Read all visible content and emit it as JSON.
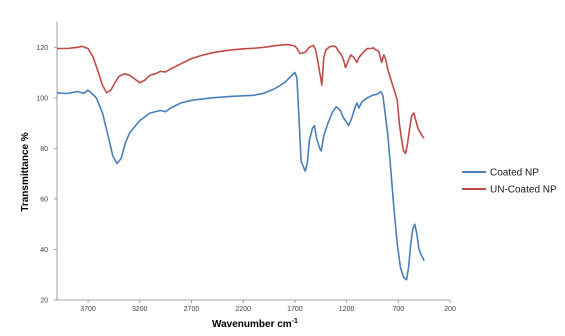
{
  "chart_data": {
    "type": "line",
    "xlabel": "Wavenumber cm",
    "xlabel_sup": "-1",
    "ylabel": "Transmittance %",
    "xlim": [
      4000,
      200
    ],
    "ylim": [
      20,
      130
    ],
    "x_ticks": [
      3700,
      3200,
      2700,
      2200,
      1700,
      1200,
      700,
      200
    ],
    "y_ticks": [
      20,
      40,
      60,
      80,
      100,
      120
    ],
    "grid": false,
    "legend_position": "right",
    "series": [
      {
        "name": "Coated NP",
        "color": "#4a7ebb",
        "points": [
          [
            4000,
            102
          ],
          [
            3900,
            101.7
          ],
          [
            3800,
            102.5
          ],
          [
            3740,
            101.8
          ],
          [
            3700,
            103
          ],
          [
            3680,
            102.4
          ],
          [
            3620,
            100
          ],
          [
            3560,
            94
          ],
          [
            3500,
            84
          ],
          [
            3460,
            77
          ],
          [
            3420,
            74
          ],
          [
            3380,
            76
          ],
          [
            3340,
            82
          ],
          [
            3300,
            86
          ],
          [
            3250,
            88.5
          ],
          [
            3200,
            91
          ],
          [
            3100,
            94
          ],
          [
            3000,
            95
          ],
          [
            2950,
            94.5
          ],
          [
            2900,
            96
          ],
          [
            2800,
            98
          ],
          [
            2700,
            99
          ],
          [
            2500,
            100
          ],
          [
            2300,
            100.6
          ],
          [
            2100,
            101
          ],
          [
            2000,
            101.8
          ],
          [
            1900,
            103.5
          ],
          [
            1800,
            106
          ],
          [
            1750,
            108
          ],
          [
            1700,
            110
          ],
          [
            1680,
            108
          ],
          [
            1660,
            92
          ],
          [
            1640,
            75
          ],
          [
            1620,
            73
          ],
          [
            1600,
            71
          ],
          [
            1580,
            74
          ],
          [
            1560,
            83
          ],
          [
            1530,
            88
          ],
          [
            1510,
            89
          ],
          [
            1490,
            84
          ],
          [
            1460,
            80
          ],
          [
            1445,
            79
          ],
          [
            1420,
            85
          ],
          [
            1380,
            90
          ],
          [
            1340,
            94
          ],
          [
            1300,
            96.5
          ],
          [
            1260,
            95
          ],
          [
            1230,
            92
          ],
          [
            1210,
            91
          ],
          [
            1180,
            89
          ],
          [
            1150,
            92
          ],
          [
            1120,
            96
          ],
          [
            1100,
            98
          ],
          [
            1080,
            96
          ],
          [
            1050,
            98.5
          ],
          [
            1000,
            100
          ],
          [
            950,
            101
          ],
          [
            900,
            101.5
          ],
          [
            870,
            102.5
          ],
          [
            850,
            101
          ],
          [
            830,
            95
          ],
          [
            800,
            85
          ],
          [
            770,
            70
          ],
          [
            740,
            55
          ],
          [
            710,
            42
          ],
          [
            680,
            33
          ],
          [
            650,
            29
          ],
          [
            620,
            28
          ],
          [
            600,
            33
          ],
          [
            580,
            42
          ],
          [
            560,
            48
          ],
          [
            540,
            50
          ],
          [
            520,
            46
          ],
          [
            500,
            40
          ],
          [
            480,
            38
          ],
          [
            460,
            36.5
          ],
          [
            450,
            35.5
          ]
        ]
      },
      {
        "name": "UN-Coated NP",
        "color": "#be4b48",
        "points": [
          [
            4000,
            119.5
          ],
          [
            3900,
            119.5
          ],
          [
            3800,
            120
          ],
          [
            3760,
            120.4
          ],
          [
            3700,
            119.5
          ],
          [
            3650,
            116
          ],
          [
            3600,
            110
          ],
          [
            3560,
            105
          ],
          [
            3520,
            102
          ],
          [
            3480,
            103
          ],
          [
            3440,
            106
          ],
          [
            3400,
            108.5
          ],
          [
            3350,
            109.5
          ],
          [
            3300,
            109
          ],
          [
            3250,
            107.5
          ],
          [
            3200,
            106
          ],
          [
            3150,
            107
          ],
          [
            3100,
            109
          ],
          [
            3050,
            109.5
          ],
          [
            3000,
            110.5
          ],
          [
            2950,
            110.2
          ],
          [
            2900,
            111.5
          ],
          [
            2800,
            113.5
          ],
          [
            2700,
            115.5
          ],
          [
            2600,
            116.8
          ],
          [
            2500,
            117.8
          ],
          [
            2400,
            118.5
          ],
          [
            2300,
            119
          ],
          [
            2200,
            119.4
          ],
          [
            2100,
            119.6
          ],
          [
            2000,
            120
          ],
          [
            1900,
            120.6
          ],
          [
            1800,
            121
          ],
          [
            1760,
            121
          ],
          [
            1700,
            120.5
          ],
          [
            1680,
            119.5
          ],
          [
            1650,
            117.5
          ],
          [
            1600,
            118
          ],
          [
            1560,
            120
          ],
          [
            1520,
            120.8
          ],
          [
            1500,
            119
          ],
          [
            1480,
            115
          ],
          [
            1460,
            110
          ],
          [
            1450,
            108
          ],
          [
            1440,
            105
          ],
          [
            1430,
            110
          ],
          [
            1420,
            116
          ],
          [
            1400,
            119
          ],
          [
            1360,
            120.3
          ],
          [
            1320,
            120.5
          ],
          [
            1300,
            120
          ],
          [
            1280,
            118.5
          ],
          [
            1250,
            117
          ],
          [
            1230,
            115
          ],
          [
            1210,
            112
          ],
          [
            1200,
            113
          ],
          [
            1180,
            115
          ],
          [
            1160,
            117
          ],
          [
            1130,
            116
          ],
          [
            1100,
            114
          ],
          [
            1080,
            116
          ],
          [
            1050,
            117.5
          ],
          [
            1000,
            119.5
          ],
          [
            960,
            119.5
          ],
          [
            940,
            119.8
          ],
          [
            920,
            119
          ],
          [
            890,
            118.5
          ],
          [
            860,
            114
          ],
          [
            840,
            117
          ],
          [
            820,
            115
          ],
          [
            800,
            111
          ],
          [
            770,
            107
          ],
          [
            740,
            103
          ],
          [
            710,
            99
          ],
          [
            690,
            90
          ],
          [
            670,
            84
          ],
          [
            650,
            79
          ],
          [
            630,
            78
          ],
          [
            610,
            82
          ],
          [
            590,
            88
          ],
          [
            570,
            93
          ],
          [
            550,
            94
          ],
          [
            530,
            91
          ],
          [
            510,
            88
          ],
          [
            490,
            86.5
          ],
          [
            470,
            85
          ],
          [
            450,
            84
          ]
        ]
      }
    ]
  }
}
